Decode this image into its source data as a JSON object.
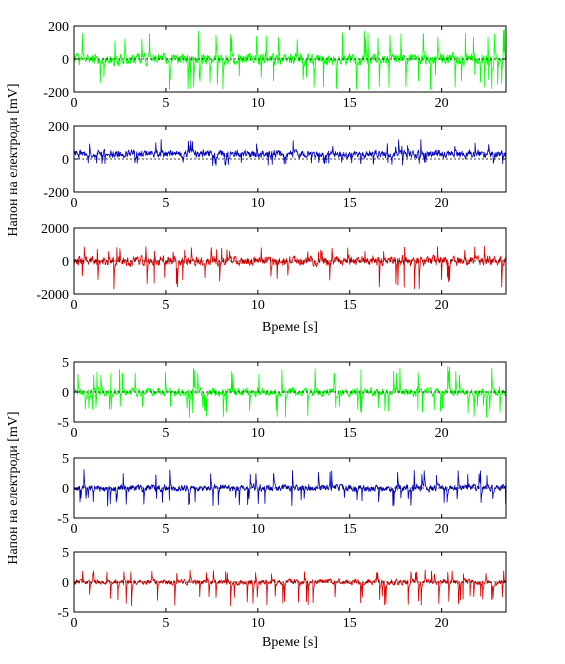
{
  "chart_data": [
    {
      "type": "line",
      "title": "",
      "panels": [
        {
          "xlabel": "",
          "xlim": [
            0,
            23.5
          ],
          "ylim": [
            -200,
            200
          ],
          "x_ticks": [
            0,
            5,
            10,
            15,
            20
          ],
          "y_ticks": [
            -200,
            0,
            200
          ],
          "grid": false,
          "series": [
            {
              "color": "#00ff00",
              "amplitude": 60,
              "peak_min": -190,
              "peak_max": 180,
              "x_start": 0,
              "x_end": 23.5
            }
          ]
        },
        {
          "xlabel": "",
          "xlim": [
            0,
            23.5
          ],
          "ylim": [
            -200,
            200
          ],
          "x_ticks": [
            0,
            5,
            10,
            15,
            20
          ],
          "y_ticks": [
            -200,
            0,
            200
          ],
          "grid": false,
          "series": [
            {
              "color": "#0000bb",
              "amplitude": 40,
              "offset": 30,
              "peak_min": -40,
              "peak_max": 120,
              "x_start": 0,
              "x_end": 23.5
            }
          ]
        },
        {
          "xlabel": "Време [s]",
          "xlim": [
            0,
            23.5
          ],
          "ylim": [
            -2000,
            2000
          ],
          "x_ticks": [
            0,
            5,
            10,
            15,
            20
          ],
          "y_ticks": [
            -2000,
            0,
            2000
          ],
          "grid": false,
          "series": [
            {
              "color": "#dd0000",
              "amplitude": 500,
              "peak_min": -1700,
              "peak_max": 900,
              "x_start": 0,
              "x_end": 23.5
            }
          ]
        }
      ],
      "ylabel": "Напон на електроди [mV]"
    },
    {
      "type": "line",
      "title": "",
      "panels": [
        {
          "xlabel": "",
          "xlim": [
            0,
            23.5
          ],
          "ylim": [
            -5,
            5
          ],
          "x_ticks": [
            0,
            5,
            10,
            15,
            20
          ],
          "y_ticks": [
            -5,
            0,
            5
          ],
          "grid": false,
          "series": [
            {
              "color": "#00ff00",
              "amplitude": 1.2,
              "peak_min": -4.3,
              "peak_max": 4.2,
              "x_start": 0,
              "x_end": 23.5
            }
          ]
        },
        {
          "xlabel": "",
          "xlim": [
            0,
            23.5
          ],
          "ylim": [
            -5,
            5
          ],
          "x_ticks": [
            0,
            5,
            10,
            15,
            20
          ],
          "y_ticks": [
            -5,
            0,
            5
          ],
          "grid": false,
          "series": [
            {
              "color": "#0000bb",
              "amplitude": 1.0,
              "peak_min": -3,
              "peak_max": 3.2,
              "x_start": 0,
              "x_end": 23.5
            }
          ]
        },
        {
          "xlabel": "Време [s]",
          "xlim": [
            0,
            23.5
          ],
          "ylim": [
            -5,
            5
          ],
          "x_ticks": [
            0,
            5,
            10,
            15,
            20
          ],
          "y_ticks": [
            -5,
            0,
            5
          ],
          "grid": false,
          "series": [
            {
              "color": "#dd0000",
              "amplitude": 0.8,
              "peak_min": -4,
              "peak_max": 2,
              "x_start": 0,
              "x_end": 23.5
            }
          ]
        }
      ],
      "ylabel": "Напон на електроди [mV]"
    }
  ]
}
